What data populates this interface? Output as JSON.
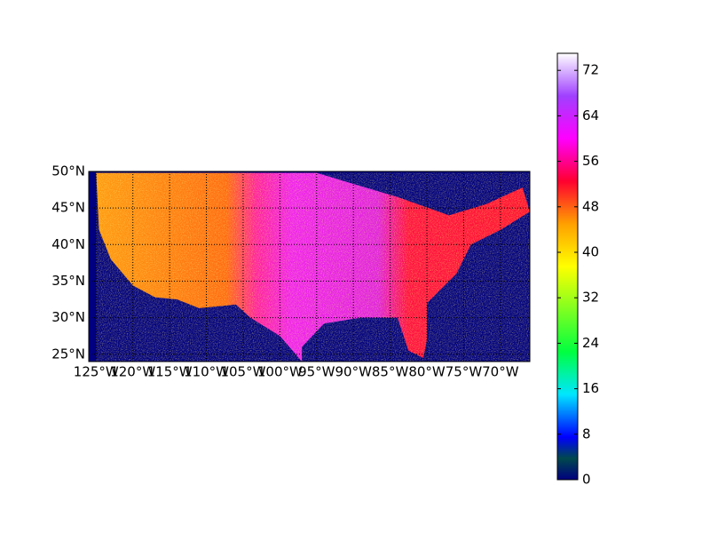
{
  "chart_data": {
    "type": "map",
    "xlim": [
      -126,
      -66
    ],
    "ylim": [
      24,
      50
    ],
    "xticks": [
      {
        "value": -125,
        "label": "125°W"
      },
      {
        "value": -120,
        "label": "120°W"
      },
      {
        "value": -115,
        "label": "115°W"
      },
      {
        "value": -110,
        "label": "110°W"
      },
      {
        "value": -105,
        "label": "105°W"
      },
      {
        "value": -100,
        "label": "100°W"
      },
      {
        "value": -95,
        "label": "95°W"
      },
      {
        "value": -90,
        "label": "90°W"
      },
      {
        "value": -85,
        "label": "85°W"
      },
      {
        "value": -80,
        "label": "80°W"
      },
      {
        "value": -75,
        "label": "75°W"
      },
      {
        "value": -70,
        "label": "70°W"
      }
    ],
    "yticks": [
      {
        "value": 25,
        "label": "25°N"
      },
      {
        "value": 30,
        "label": "30°N"
      },
      {
        "value": 35,
        "label": "35°N"
      },
      {
        "value": 40,
        "label": "40°N"
      },
      {
        "value": 45,
        "label": "45°N"
      },
      {
        "value": 50,
        "label": "50°N"
      }
    ],
    "grid": true,
    "colorbar": {
      "clim": [
        0,
        75
      ],
      "ticks": [
        0,
        8,
        16,
        24,
        32,
        40,
        48,
        56,
        64,
        72
      ]
    }
  }
}
